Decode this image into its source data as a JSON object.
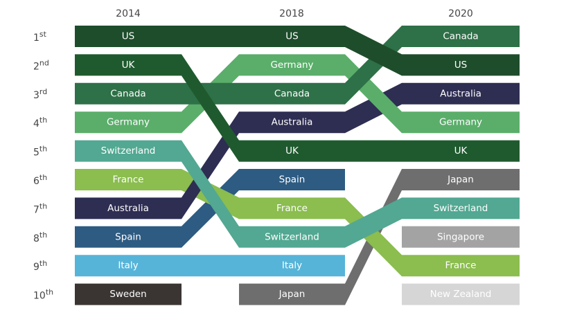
{
  "chart_data": {
    "type": "bump",
    "years": [
      "2014",
      "2018",
      "2020"
    ],
    "ranks": [
      {
        "num": "1",
        "suffix": "st"
      },
      {
        "num": "2",
        "suffix": "nd"
      },
      {
        "num": "3",
        "suffix": "rd"
      },
      {
        "num": "4",
        "suffix": "th"
      },
      {
        "num": "5",
        "suffix": "th"
      },
      {
        "num": "6",
        "suffix": "th"
      },
      {
        "num": "7",
        "suffix": "th"
      },
      {
        "num": "8",
        "suffix": "th"
      },
      {
        "num": "9",
        "suffix": "th"
      },
      {
        "num": "10",
        "suffix": "th"
      }
    ],
    "series": [
      {
        "name": "Sweden",
        "ranks": [
          10,
          null,
          null
        ],
        "color": "#3a3533"
      },
      {
        "name": "Italy",
        "ranks": [
          9,
          9,
          null
        ],
        "color": "#56b4d9"
      },
      {
        "name": "Spain",
        "ranks": [
          8,
          6,
          null
        ],
        "color": "#2d5b82"
      },
      {
        "name": "Japan",
        "ranks": [
          null,
          10,
          6
        ],
        "color": "#6e6e6e"
      },
      {
        "name": "France",
        "ranks": [
          6,
          7,
          9
        ],
        "color": "#8bbd4f"
      },
      {
        "name": "Australia",
        "ranks": [
          7,
          4,
          3
        ],
        "color": "#2e2d52"
      },
      {
        "name": "Switzerland",
        "ranks": [
          5,
          8,
          7
        ],
        "color": "#52a892"
      },
      {
        "name": "Germany",
        "ranks": [
          4,
          2,
          4
        ],
        "color": "#5aae6a"
      },
      {
        "name": "Canada",
        "ranks": [
          3,
          3,
          1
        ],
        "color": "#2e7047"
      },
      {
        "name": "UK",
        "ranks": [
          2,
          5,
          5
        ],
        "color": "#1f5a2e"
      },
      {
        "name": "US",
        "ranks": [
          1,
          1,
          2
        ],
        "color": "#1e4d2b"
      },
      {
        "name": "Singapore",
        "ranks": [
          null,
          null,
          8
        ],
        "color": "#a3a3a3"
      },
      {
        "name": "New Zealand",
        "ranks": [
          null,
          null,
          10
        ],
        "color": "#d6d6d6",
        "label_color": "#f2f2f2"
      }
    ]
  }
}
